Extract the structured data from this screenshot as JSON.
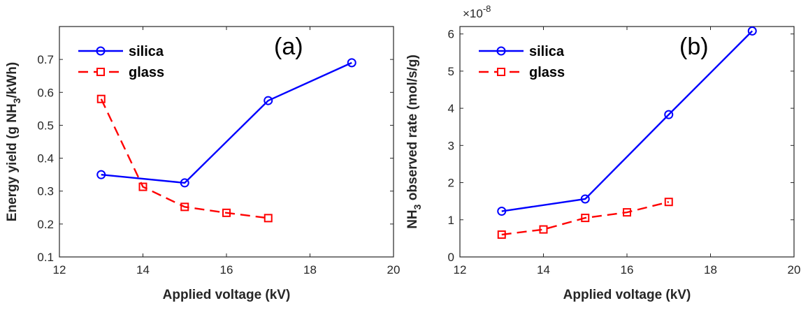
{
  "chart_data": [
    {
      "type": "line",
      "panel_label": "(a)",
      "xlabel": "Applied voltage (kV)",
      "ylabel": {
        "prefix": "Energy yield (g NH",
        "sub": "3",
        "suffix": "/kWh)"
      },
      "xlim": [
        12,
        20
      ],
      "ylim": [
        0.1,
        0.8
      ],
      "xticks": [
        "12",
        "14",
        "16",
        "18",
        "20"
      ],
      "yticks": [
        "0.1",
        "0.2",
        "0.3",
        "0.4",
        "0.5",
        "0.6",
        "0.7"
      ],
      "ytick_values": [
        0.1,
        0.2,
        0.3,
        0.4,
        0.5,
        0.6,
        0.7
      ],
      "xtick_values": [
        12,
        14,
        16,
        18,
        20
      ],
      "legend_position": "top-left",
      "series": [
        {
          "name": "silica",
          "color": "#0000ff",
          "marker": "circle",
          "dash": "solid",
          "x": [
            13,
            15,
            17,
            19
          ],
          "y": [
            0.35,
            0.325,
            0.575,
            0.69
          ]
        },
        {
          "name": "glass",
          "color": "#ff0000",
          "marker": "square",
          "dash": "dashed",
          "x": [
            13,
            14,
            15,
            16,
            17
          ],
          "y": [
            0.58,
            0.313,
            0.252,
            0.234,
            0.218
          ]
        }
      ]
    },
    {
      "type": "line",
      "panel_label": "(b)",
      "xlabel": "Applied voltage (kV)",
      "ylabel": {
        "prefix": "NH",
        "sub": "3",
        "suffix": " observed rate (mol/s/g)"
      },
      "exponent": {
        "base": "×10",
        "power": "-8"
      },
      "xlim": [
        12,
        20
      ],
      "ylim": [
        0,
        6.2
      ],
      "xticks": [
        "12",
        "14",
        "16",
        "18",
        "20"
      ],
      "yticks": [
        "0",
        "1",
        "2",
        "3",
        "4",
        "5",
        "6"
      ],
      "ytick_values": [
        0,
        1,
        2,
        3,
        4,
        5,
        6
      ],
      "xtick_values": [
        12,
        14,
        16,
        18,
        20
      ],
      "legend_position": "top-left",
      "series": [
        {
          "name": "silica",
          "color": "#0000ff",
          "marker": "circle",
          "dash": "solid",
          "x": [
            13,
            15,
            17,
            19
          ],
          "y": [
            1.23,
            1.56,
            3.83,
            6.08
          ]
        },
        {
          "name": "glass",
          "color": "#ff0000",
          "marker": "square",
          "dash": "dashed",
          "x": [
            13,
            14,
            15,
            16,
            17
          ],
          "y": [
            0.6,
            0.74,
            1.05,
            1.2,
            1.48
          ]
        }
      ]
    }
  ]
}
